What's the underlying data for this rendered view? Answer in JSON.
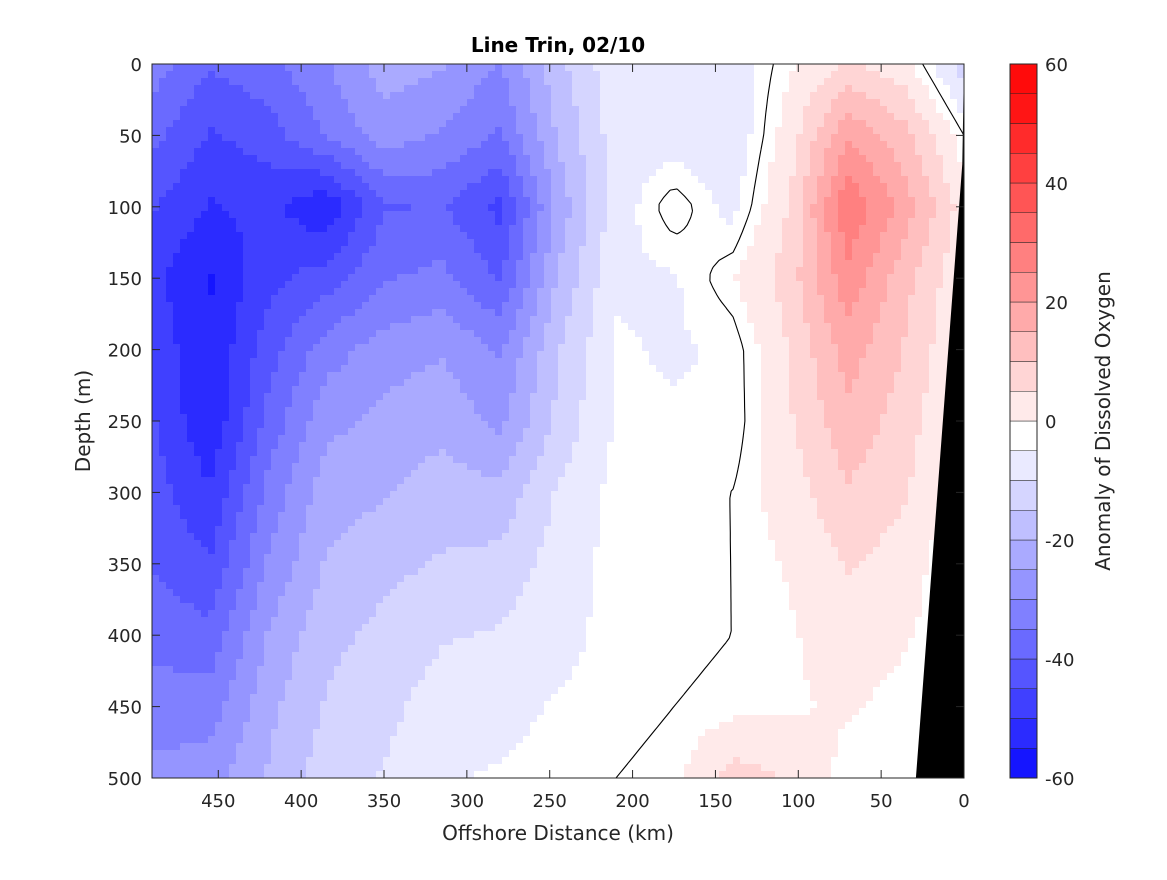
{
  "chart_data": {
    "type": "heatmap",
    "title": "Line Trin, 02/10",
    "xlabel": "Offshore Distance (km)",
    "ylabel": "Depth (m)",
    "colorbar_label": "Anomaly of Dissolved Oxygen",
    "xlim": [
      490,
      0
    ],
    "ylim": [
      0,
      500
    ],
    "x_direction": "reversed",
    "y_direction": "reversed",
    "x_ticks": [
      "450",
      "400",
      "350",
      "300",
      "250",
      "200",
      "150",
      "100",
      "50",
      "0"
    ],
    "x_tick_values": [
      450,
      400,
      350,
      300,
      250,
      200,
      150,
      100,
      50,
      0
    ],
    "y_ticks": [
      "0",
      "50",
      "100",
      "150",
      "200",
      "250",
      "300",
      "350",
      "400",
      "450",
      "500"
    ],
    "y_tick_values": [
      0,
      50,
      100,
      150,
      200,
      250,
      300,
      350,
      400,
      450,
      500
    ],
    "colorbar_ticks": [
      "60",
      "40",
      "20",
      "0",
      "-20",
      "-40",
      "-60"
    ],
    "colorbar_tick_values": [
      60,
      40,
      20,
      0,
      -20,
      -40,
      -60
    ],
    "clim": [
      -60,
      60
    ],
    "contour_step": 5,
    "grid": false,
    "colormap": {
      "negative": "#0000ff",
      "zero": "#ffffff",
      "positive": "#ff0000"
    },
    "bathymetry_color": "#000000",
    "zero_contour_color": "#000000",
    "grid_x_km": [
      490,
      455,
      420,
      385,
      350,
      315,
      280,
      245,
      210,
      175,
      140,
      105,
      70,
      35,
      0
    ],
    "grid_depth_m": [
      0,
      50,
      100,
      150,
      200,
      250,
      300,
      350,
      400,
      450,
      500
    ],
    "values": [
      [
        -30,
        -37,
        -34,
        -28,
        -20,
        -22,
        -28,
        -14,
        -4,
        -4,
        -5,
        2,
        8,
        4,
        -10
      ],
      [
        -36,
        -43,
        -40,
        -32,
        -25,
        -28,
        -33,
        -17,
        -5,
        -5,
        -6,
        5,
        22,
        14,
        0
      ],
      [
        -42,
        -48,
        -46,
        -52,
        -38,
        -37,
        -44,
        -21,
        -5,
        2,
        -4,
        8,
        32,
        20,
        5
      ],
      [
        -46,
        -53,
        -44,
        -40,
        -33,
        -31,
        -38,
        -17,
        -3,
        -3,
        2,
        10,
        26,
        14,
        3
      ],
      [
        -44,
        -52,
        -40,
        -30,
        -25,
        -23,
        -28,
        -13,
        -2,
        -3,
        -2,
        8,
        20,
        12,
        2
      ],
      [
        -42,
        -52,
        -36,
        -24,
        -21,
        -19,
        -24,
        -11,
        -2,
        -2,
        -2,
        7,
        16,
        10,
        0
      ],
      [
        -40,
        -47,
        -31,
        -20,
        -18,
        -15,
        -16,
        -7,
        -1,
        -1,
        0,
        5,
        12,
        8,
        -1
      ],
      [
        -38,
        -42,
        -27,
        -17,
        -14,
        -12,
        -11,
        -5,
        -1,
        -1,
        0,
        3,
        8,
        5,
        -2
      ],
      [
        -34,
        -36,
        -22,
        -14,
        -11,
        -8,
        -7,
        -4,
        -1,
        -1,
        0,
        2,
        5,
        3,
        -1
      ],
      [
        -30,
        -30,
        -19,
        -12,
        -9,
        -5,
        -4,
        -2,
        -1,
        0,
        1,
        2,
        3,
        1,
        0
      ],
      [
        -26,
        -25,
        -17,
        -10,
        -7,
        -3,
        -2,
        -1,
        0,
        1,
        10,
        7,
        1,
        0,
        8
      ]
    ]
  }
}
